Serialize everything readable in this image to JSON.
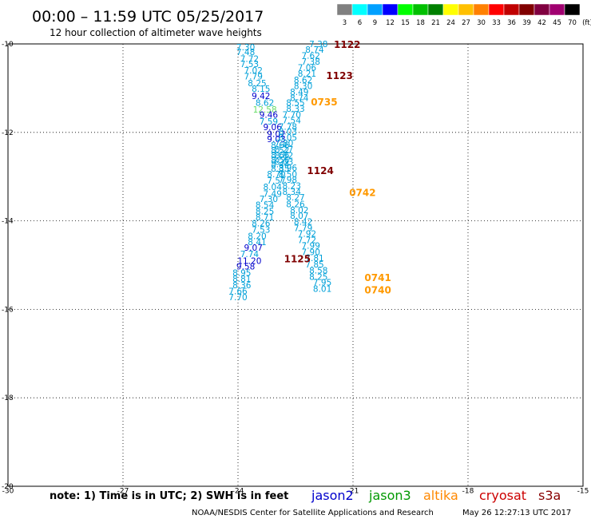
{
  "header": {
    "title": "00:00 – 11:59 UTC 05/25/2017",
    "subtitle": "12 hour collection of altimeter wave heights"
  },
  "legend_bar": {
    "labels": [
      "3",
      "6",
      "9",
      "12",
      "15",
      "18",
      "21",
      "24",
      "27",
      "30",
      "33",
      "36",
      "39",
      "42",
      "45",
      "70",
      "(ft)"
    ],
    "colors": [
      "#808080",
      "#00ffff",
      "#00a0ff",
      "#0000ff",
      "#00ff00",
      "#00c000",
      "#008000",
      "#ffff00",
      "#ffc000",
      "#ff8000",
      "#ff0000",
      "#c00000",
      "#800000",
      "#800040",
      "#a00070",
      "#000000"
    ]
  },
  "footer": {
    "note": "note:  1) Time is in UTC;  2) SWH is in feet",
    "satellites": [
      {
        "name": "jason2",
        "color": "#0000cc"
      },
      {
        "name": "jason3",
        "color": "#009900"
      },
      {
        "name": "altika",
        "color": "#ff8800"
      },
      {
        "name": "cryosat",
        "color": "#cc0000"
      },
      {
        "name": "s3a",
        "color": "#880000"
      }
    ],
    "credit": "NOAA/NESDIS Center for Satellite Applications and Research",
    "timestamp": "May 26 12:27:13 UTC 2017"
  },
  "chart_data": {
    "type": "scatter",
    "xlim": [
      -30,
      -15
    ],
    "ylim": [
      -20,
      -10
    ],
    "x_ticks": [
      "-30",
      "-27",
      "-24",
      "-21",
      "-18",
      "-15"
    ],
    "y_ticks": [
      "-10",
      "-12",
      "-14",
      "-16",
      "-18",
      "-20"
    ],
    "grid": true,
    "points": [
      {
        "x": -23.8,
        "y": -10.07,
        "v": "7.30",
        "c": "#00a0d8"
      },
      {
        "x": -23.8,
        "y": -10.18,
        "v": "7.48",
        "c": "#00a0d8"
      },
      {
        "x": -23.7,
        "y": -10.33,
        "v": "7.72",
        "c": "#00a0d8"
      },
      {
        "x": -23.7,
        "y": -10.45,
        "v": "7.53",
        "c": "#00a0d8"
      },
      {
        "x": -23.6,
        "y": -10.6,
        "v": "7.02",
        "c": "#00a0d8"
      },
      {
        "x": -23.6,
        "y": -10.73,
        "v": "7.79",
        "c": "#00a0d8"
      },
      {
        "x": -23.5,
        "y": -10.88,
        "v": "8.25",
        "c": "#00a0d8"
      },
      {
        "x": -23.4,
        "y": -11.01,
        "v": "8.15",
        "c": "#00a0d8"
      },
      {
        "x": -23.4,
        "y": -11.17,
        "v": "9.42",
        "c": "#0000cc"
      },
      {
        "x": -23.3,
        "y": -11.33,
        "v": "8.62",
        "c": "#00a0d8"
      },
      {
        "x": -23.3,
        "y": -11.48,
        "v": "12.58",
        "c": "#66dd66"
      },
      {
        "x": -23.2,
        "y": -11.6,
        "v": "9.46",
        "c": "#0000cc"
      },
      {
        "x": -23.2,
        "y": -11.75,
        "v": "7.59",
        "c": "#00a0d8"
      },
      {
        "x": -23.1,
        "y": -11.88,
        "v": "9.06",
        "c": "#0000cc"
      },
      {
        "x": -23.0,
        "y": -12.03,
        "v": "9.02",
        "c": "#0000cc"
      },
      {
        "x": -23.0,
        "y": -12.15,
        "v": "9.03",
        "c": "#0000cc"
      },
      {
        "x": -22.9,
        "y": -12.28,
        "v": "8.66",
        "c": "#00a0d8"
      },
      {
        "x": -22.9,
        "y": -12.4,
        "v": "8.52",
        "c": "#00a0d8"
      },
      {
        "x": -22.9,
        "y": -12.51,
        "v": "8.66",
        "c": "#00a0d8"
      },
      {
        "x": -22.9,
        "y": -12.62,
        "v": "8.56",
        "c": "#00a0d8"
      },
      {
        "x": -22.9,
        "y": -12.72,
        "v": "8.44",
        "c": "#00a0d8"
      },
      {
        "x": -22.9,
        "y": -12.82,
        "v": "8.35",
        "c": "#00a0d8"
      },
      {
        "x": -23.0,
        "y": -12.94,
        "v": "8.70",
        "c": "#00a0d8"
      },
      {
        "x": -23.0,
        "y": -13.09,
        "v": "7.57",
        "c": "#00a0d8"
      },
      {
        "x": -23.1,
        "y": -13.23,
        "v": "8.04",
        "c": "#00a0d8"
      },
      {
        "x": -23.1,
        "y": -13.38,
        "v": "7.49",
        "c": "#00a0d8"
      },
      {
        "x": -23.2,
        "y": -13.5,
        "v": "7.30",
        "c": "#00a0d8"
      },
      {
        "x": -23.3,
        "y": -13.64,
        "v": "8.54",
        "c": "#00a0d8"
      },
      {
        "x": -23.3,
        "y": -13.78,
        "v": "8.25",
        "c": "#00a0d8"
      },
      {
        "x": -23.3,
        "y": -13.92,
        "v": "8.71",
        "c": "#00a0d8"
      },
      {
        "x": -23.4,
        "y": -14.05,
        "v": "8.26",
        "c": "#00a0d8"
      },
      {
        "x": -23.4,
        "y": -14.2,
        "v": "7.53",
        "c": "#00a0d8"
      },
      {
        "x": -23.5,
        "y": -14.34,
        "v": "8.20",
        "c": "#00a0d8"
      },
      {
        "x": -23.5,
        "y": -14.48,
        "v": "8.41",
        "c": "#00a0d8"
      },
      {
        "x": -23.6,
        "y": -14.6,
        "v": "9.07",
        "c": "#0000cc"
      },
      {
        "x": -23.7,
        "y": -14.75,
        "v": "7.74",
        "c": "#00a0d8"
      },
      {
        "x": -23.7,
        "y": -14.9,
        "v": "11.20",
        "c": "#0000cc"
      },
      {
        "x": -23.8,
        "y": -15.03,
        "v": "9.58",
        "c": "#0000cc"
      },
      {
        "x": -23.9,
        "y": -15.17,
        "v": "8.95",
        "c": "#00a0d8"
      },
      {
        "x": -23.9,
        "y": -15.31,
        "v": "8.81",
        "c": "#00a0d8"
      },
      {
        "x": -23.9,
        "y": -15.45,
        "v": "8.36",
        "c": "#00a0d8"
      },
      {
        "x": -24.0,
        "y": -15.59,
        "v": "7.66",
        "c": "#00a0d8"
      },
      {
        "x": -24.0,
        "y": -15.72,
        "v": "7.70",
        "c": "#00a0d8"
      },
      {
        "x": -21.9,
        "y": -10.0,
        "v": "7.38",
        "c": "#00a0d8"
      },
      {
        "x": -22.0,
        "y": -10.13,
        "v": "8.74",
        "c": "#00a0d8"
      },
      {
        "x": -22.1,
        "y": -10.26,
        "v": "7.62",
        "c": "#00a0d8"
      },
      {
        "x": -22.1,
        "y": -10.4,
        "v": "7.38",
        "c": "#00a0d8"
      },
      {
        "x": -22.2,
        "y": -10.53,
        "v": "7.06",
        "c": "#00a0d8"
      },
      {
        "x": -22.2,
        "y": -10.67,
        "v": "8.21",
        "c": "#00a0d8"
      },
      {
        "x": -22.3,
        "y": -10.81,
        "v": "8.62",
        "c": "#00a0d8"
      },
      {
        "x": -22.3,
        "y": -10.95,
        "v": "8.30",
        "c": "#00a0d8"
      },
      {
        "x": -22.4,
        "y": -11.08,
        "v": "8.49",
        "c": "#00a0d8"
      },
      {
        "x": -22.4,
        "y": -11.22,
        "v": "8.74",
        "c": "#00a0d8"
      },
      {
        "x": -22.5,
        "y": -11.33,
        "v": "8.55",
        "c": "#00a0d8"
      },
      {
        "x": -22.5,
        "y": -11.46,
        "v": "8.33",
        "c": "#00a0d8"
      },
      {
        "x": -22.6,
        "y": -11.6,
        "v": "7.70",
        "c": "#00a0d8"
      },
      {
        "x": -22.6,
        "y": -11.72,
        "v": "7.54",
        "c": "#00a0d8"
      },
      {
        "x": -22.7,
        "y": -11.87,
        "v": "7.78",
        "c": "#00a0d8"
      },
      {
        "x": -22.7,
        "y": -11.98,
        "v": "8.03",
        "c": "#00a0d8"
      },
      {
        "x": -22.7,
        "y": -12.11,
        "v": "8.05",
        "c": "#00a0d8"
      },
      {
        "x": -22.8,
        "y": -12.24,
        "v": "7.80",
        "c": "#00a0d8"
      },
      {
        "x": -22.8,
        "y": -12.38,
        "v": "8.27",
        "c": "#00a0d8"
      },
      {
        "x": -22.8,
        "y": -12.52,
        "v": "8.82",
        "c": "#00a0d8"
      },
      {
        "x": -22.8,
        "y": -12.66,
        "v": "8.03",
        "c": "#00a0d8"
      },
      {
        "x": -22.7,
        "y": -12.8,
        "v": "8.96",
        "c": "#00a0d8"
      },
      {
        "x": -22.7,
        "y": -12.94,
        "v": "8.50",
        "c": "#00a0d8"
      },
      {
        "x": -22.7,
        "y": -13.07,
        "v": "7.98",
        "c": "#00a0d8"
      },
      {
        "x": -22.6,
        "y": -13.2,
        "v": "8.23",
        "c": "#00a0d8"
      },
      {
        "x": -22.6,
        "y": -13.34,
        "v": "8.34",
        "c": "#00a0d8"
      },
      {
        "x": -22.5,
        "y": -13.47,
        "v": "8.27",
        "c": "#00a0d8"
      },
      {
        "x": -22.5,
        "y": -13.62,
        "v": "8.26",
        "c": "#00a0d8"
      },
      {
        "x": -22.4,
        "y": -13.75,
        "v": "8.02",
        "c": "#00a0d8"
      },
      {
        "x": -22.4,
        "y": -13.88,
        "v": "8.07",
        "c": "#00a0d8"
      },
      {
        "x": -22.3,
        "y": -14.02,
        "v": "8.42",
        "c": "#00a0d8"
      },
      {
        "x": -22.3,
        "y": -14.16,
        "v": "7.79",
        "c": "#00a0d8"
      },
      {
        "x": -22.2,
        "y": -14.29,
        "v": "7.92",
        "c": "#00a0d8"
      },
      {
        "x": -22.2,
        "y": -14.43,
        "v": "7.72",
        "c": "#00a0d8"
      },
      {
        "x": -22.1,
        "y": -14.56,
        "v": "7.99",
        "c": "#00a0d8"
      },
      {
        "x": -22.1,
        "y": -14.7,
        "v": "7.90",
        "c": "#00a0d8"
      },
      {
        "x": -22.0,
        "y": -14.84,
        "v": "7.81",
        "c": "#00a0d8"
      },
      {
        "x": -22.0,
        "y": -14.98,
        "v": "7.85",
        "c": "#00a0d8"
      },
      {
        "x": -21.9,
        "y": -15.12,
        "v": "8.58",
        "c": "#00a0d8"
      },
      {
        "x": -21.9,
        "y": -15.26,
        "v": "8.25",
        "c": "#00a0d8"
      },
      {
        "x": -21.8,
        "y": -15.39,
        "v": "7.95",
        "c": "#00a0d8"
      },
      {
        "x": -21.8,
        "y": -15.53,
        "v": "8.01",
        "c": "#00a0d8"
      }
    ],
    "time_labels": [
      {
        "x": -21.5,
        "y": -10.0,
        "t": "1122",
        "c": "#800000"
      },
      {
        "x": -21.7,
        "y": -10.7,
        "t": "1123",
        "c": "#800000"
      },
      {
        "x": -22.1,
        "y": -11.3,
        "t": "0735",
        "c": "#ff9900"
      },
      {
        "x": -22.2,
        "y": -12.85,
        "t": "1124",
        "c": "#800000"
      },
      {
        "x": -21.1,
        "y": -13.35,
        "t": "0742",
        "c": "#ff9900"
      },
      {
        "x": -22.8,
        "y": -14.85,
        "t": "1125",
        "c": "#800000"
      },
      {
        "x": -20.7,
        "y": -15.27,
        "t": "0741",
        "c": "#ff9900"
      },
      {
        "x": -20.7,
        "y": -15.55,
        "t": "0740",
        "c": "#ff9900"
      }
    ]
  }
}
